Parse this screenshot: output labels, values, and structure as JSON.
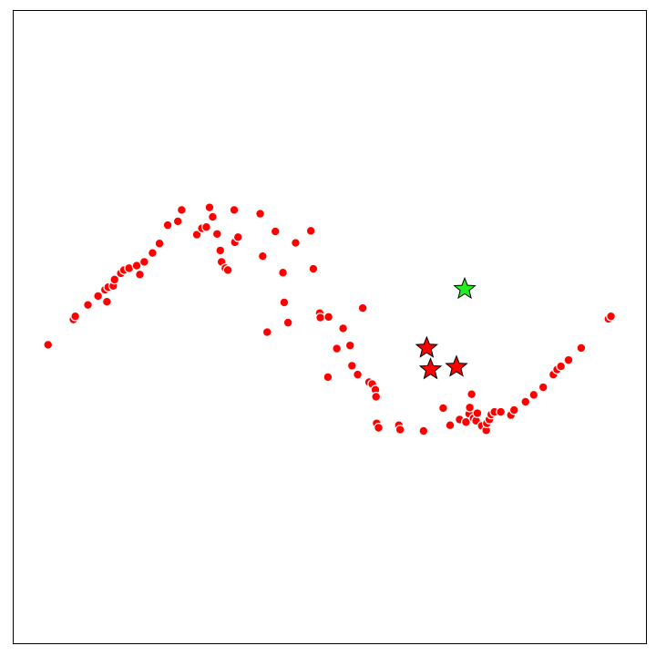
{
  "chart_data": {
    "type": "scatter",
    "title": "",
    "xlabel": "",
    "ylabel": "",
    "axes_visible": false,
    "grid": false,
    "xlim": [
      0,
      1
    ],
    "ylim": [
      0,
      1
    ],
    "colors": {
      "point_fill": "#ff0000",
      "point_edge": "#ffffff",
      "star_red": "#ff0000",
      "star_green": "#22ee22",
      "star_edge": "#000000",
      "frame": "#000000"
    },
    "series": [
      {
        "marker": "circle",
        "points": [
          [
            0.055,
            0.472
          ],
          [
            0.095,
            0.512
          ],
          [
            0.098,
            0.517
          ],
          [
            0.118,
            0.535
          ],
          [
            0.134,
            0.549
          ],
          [
            0.145,
            0.559
          ],
          [
            0.148,
            0.54
          ],
          [
            0.15,
            0.563
          ],
          [
            0.158,
            0.565
          ],
          [
            0.16,
            0.575
          ],
          [
            0.17,
            0.585
          ],
          [
            0.175,
            0.59
          ],
          [
            0.183,
            0.593
          ],
          [
            0.195,
            0.597
          ],
          [
            0.2,
            0.583
          ],
          [
            0.207,
            0.603
          ],
          [
            0.22,
            0.617
          ],
          [
            0.231,
            0.632
          ],
          [
            0.244,
            0.661
          ],
          [
            0.26,
            0.667
          ],
          [
            0.266,
            0.685
          ],
          [
            0.29,
            0.646
          ],
          [
            0.298,
            0.656
          ],
          [
            0.305,
            0.658
          ],
          [
            0.31,
            0.689
          ],
          [
            0.315,
            0.674
          ],
          [
            0.322,
            0.647
          ],
          [
            0.327,
            0.621
          ],
          [
            0.329,
            0.603
          ],
          [
            0.335,
            0.593
          ],
          [
            0.339,
            0.59
          ],
          [
            0.349,
            0.685
          ],
          [
            0.35,
            0.634
          ],
          [
            0.355,
            0.642
          ],
          [
            0.39,
            0.679
          ],
          [
            0.394,
            0.612
          ],
          [
            0.401,
            0.492
          ],
          [
            0.414,
            0.651
          ],
          [
            0.426,
            0.586
          ],
          [
            0.428,
            0.539
          ],
          [
            0.434,
            0.507
          ],
          [
            0.446,
            0.633
          ],
          [
            0.47,
            0.652
          ],
          [
            0.474,
            0.592
          ],
          [
            0.484,
            0.522
          ],
          [
            0.485,
            0.515
          ],
          [
            0.497,
            0.421
          ],
          [
            0.498,
            0.516
          ],
          [
            0.511,
            0.466
          ],
          [
            0.521,
            0.498
          ],
          [
            0.532,
            0.471
          ],
          [
            0.535,
            0.439
          ],
          [
            0.544,
            0.425
          ],
          [
            0.552,
            0.53
          ],
          [
            0.562,
            0.413
          ],
          [
            0.567,
            0.41
          ],
          [
            0.572,
            0.401
          ],
          [
            0.573,
            0.39
          ],
          [
            0.574,
            0.348
          ],
          [
            0.577,
            0.341
          ],
          [
            0.609,
            0.345
          ],
          [
            0.611,
            0.338
          ],
          [
            0.648,
            0.336
          ],
          [
            0.679,
            0.372
          ],
          [
            0.69,
            0.345
          ],
          [
            0.705,
            0.354
          ],
          [
            0.715,
            0.35
          ],
          [
            0.72,
            0.363
          ],
          [
            0.721,
            0.373
          ],
          [
            0.724,
            0.394
          ],
          [
            0.727,
            0.356
          ],
          [
            0.731,
            0.352
          ],
          [
            0.733,
            0.364
          ],
          [
            0.74,
            0.344
          ],
          [
            0.747,
            0.337
          ],
          [
            0.748,
            0.348
          ],
          [
            0.752,
            0.354
          ],
          [
            0.755,
            0.362
          ],
          [
            0.76,
            0.366
          ],
          [
            0.77,
            0.366
          ],
          [
            0.786,
            0.361
          ],
          [
            0.791,
            0.369
          ],
          [
            0.809,
            0.382
          ],
          [
            0.822,
            0.393
          ],
          [
            0.837,
            0.405
          ],
          [
            0.853,
            0.425
          ],
          [
            0.859,
            0.433
          ],
          [
            0.865,
            0.438
          ],
          [
            0.877,
            0.448
          ],
          [
            0.897,
            0.467
          ],
          [
            0.94,
            0.513
          ],
          [
            0.944,
            0.517
          ]
        ]
      },
      {
        "marker": "star",
        "color_key": "star_red",
        "points": [
          [
            0.653,
            0.467
          ],
          [
            0.659,
            0.433
          ],
          [
            0.7,
            0.437
          ]
        ]
      },
      {
        "marker": "star",
        "color_key": "star_green",
        "points": [
          [
            0.713,
            0.56
          ]
        ]
      }
    ]
  }
}
